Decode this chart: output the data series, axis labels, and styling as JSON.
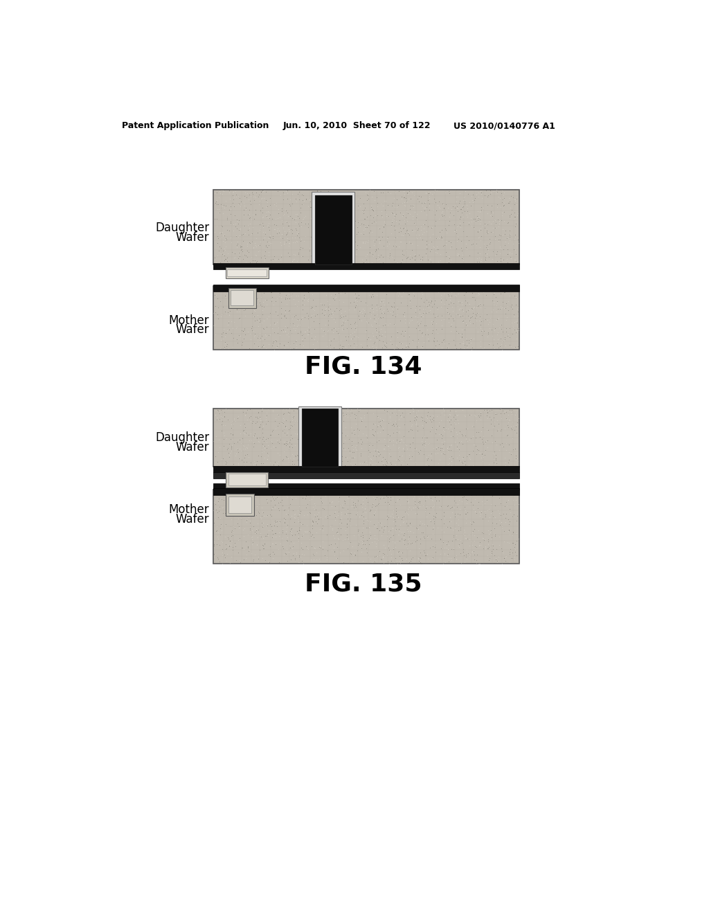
{
  "header_left": "Patent Application Publication",
  "header_mid": "Jun. 10, 2010  Sheet 70 of 122",
  "header_right": "US 2010/0140776 A1",
  "fig134_label": "FIG. 134",
  "fig135_label": "FIG. 135",
  "bg_color": "#ffffff",
  "wafer_fill": "#b8b2a8",
  "wafer_edge": "#444444",
  "dark_stripe": "#111111",
  "black_connector": "#0a0a0a",
  "pad_fill": "#d0cbc0",
  "pad_inner": "#e0dbd2",
  "connector_outline": "#cccccc",
  "text_color": "#000000",
  "fig_label_size": 26,
  "header_size": 9,
  "label_size": 12
}
